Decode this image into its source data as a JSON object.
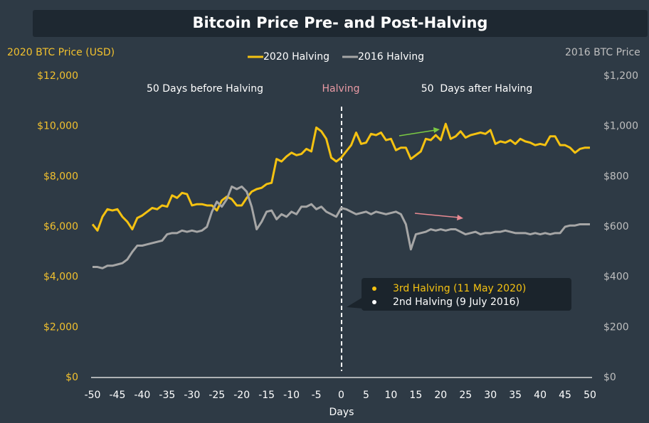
{
  "chart_data": {
    "type": "line",
    "title": "Bitcoin Price Pre- and Post-Halving",
    "ylabel": "2020 BTC Price (USD)",
    "y2label": "2016 BTC Price",
    "xlabel": "Days",
    "annotations": [
      "50 Days before Halving",
      "Halving",
      "50  Days after Halving"
    ],
    "tooltip": [
      "3rd Halving (11 May 2020)",
      "2nd Halving (9 July 2016)"
    ],
    "x": [
      -50,
      -49,
      -48,
      -47,
      -46,
      -45,
      -44,
      -43,
      -42,
      -41,
      -40,
      -39,
      -38,
      -37,
      -36,
      -35,
      -34,
      -33,
      -32,
      -31,
      -30,
      -29,
      -28,
      -27,
      -26,
      -25,
      -24,
      -23,
      -22,
      -21,
      -20,
      -19,
      -18,
      -17,
      -16,
      -15,
      -14,
      -13,
      -12,
      -11,
      -10,
      -9,
      -8,
      -7,
      -6,
      -5,
      -4,
      -3,
      -2,
      -1,
      0,
      1,
      2,
      3,
      4,
      5,
      6,
      7,
      8,
      9,
      10,
      11,
      12,
      13,
      14,
      15,
      16,
      17,
      18,
      19,
      20,
      21,
      22,
      23,
      24,
      25,
      26,
      27,
      28,
      29,
      30,
      31,
      32,
      33,
      34,
      35,
      36,
      37,
      38,
      39,
      40,
      41,
      42,
      43,
      44,
      45,
      46,
      47,
      48,
      49,
      50
    ],
    "series": [
      {
        "name": "2020 Halving",
        "color": "#f5c211",
        "axis": "y",
        "values": [
          6100,
          5850,
          6400,
          6700,
          6650,
          6700,
          6400,
          6200,
          5900,
          6350,
          6450,
          6600,
          6750,
          6700,
          6850,
          6800,
          7250,
          7150,
          7350,
          7300,
          6850,
          6900,
          6900,
          6850,
          6850,
          6650,
          7050,
          7200,
          7100,
          6850,
          6850,
          7150,
          7400,
          7500,
          7550,
          7700,
          7750,
          8700,
          8600,
          8800,
          8950,
          8850,
          8900,
          9100,
          9000,
          9950,
          9800,
          9500,
          8750,
          8600,
          8750,
          9000,
          9250,
          9750,
          9300,
          9350,
          9700,
          9650,
          9750,
          9450,
          9500,
          9050,
          9150,
          9150,
          8700,
          8850,
          9000,
          9500,
          9450,
          9650,
          9450,
          10100,
          9500,
          9600,
          9800,
          9550,
          9650,
          9700,
          9750,
          9700,
          9850,
          9300,
          9400,
          9350,
          9450,
          9300,
          9500,
          9400,
          9350,
          9250,
          9300,
          9250,
          9600,
          9600,
          9250,
          9250,
          9150,
          8950,
          9100,
          9150,
          9150
        ]
      },
      {
        "name": "2016 Halving",
        "color": "#a6a6a6",
        "axis": "y2",
        "values": [
          440,
          440,
          435,
          445,
          445,
          450,
          455,
          470,
          500,
          525,
          525,
          530,
          535,
          540,
          545,
          570,
          575,
          575,
          585,
          580,
          585,
          580,
          585,
          600,
          660,
          700,
          680,
          710,
          760,
          750,
          760,
          740,
          680,
          590,
          620,
          660,
          665,
          630,
          650,
          640,
          660,
          650,
          680,
          680,
          690,
          670,
          680,
          660,
          650,
          640,
          675,
          670,
          660,
          650,
          655,
          660,
          650,
          660,
          655,
          650,
          655,
          660,
          650,
          610,
          510,
          570,
          575,
          580,
          590,
          585,
          590,
          585,
          590,
          590,
          580,
          570,
          575,
          580,
          570,
          575,
          575,
          580,
          580,
          585,
          580,
          575,
          575,
          575,
          570,
          575,
          570,
          575,
          570,
          575,
          575,
          600,
          605,
          605,
          610,
          610,
          610
        ]
      }
    ],
    "xlim": [
      -50,
      50
    ],
    "xticks": [
      -50,
      -45,
      -40,
      -35,
      -30,
      -25,
      -20,
      -15,
      -10,
      -5,
      0,
      5,
      10,
      15,
      20,
      25,
      30,
      35,
      40,
      45,
      50
    ],
    "ylim": [
      0,
      12000
    ],
    "yticks": [
      {
        "value": 0,
        "label": "$0"
      },
      {
        "value": 2000,
        "label": "$2,000"
      },
      {
        "value": 4000,
        "label": "$4,000"
      },
      {
        "value": 6000,
        "label": "$6,000"
      },
      {
        "value": 8000,
        "label": "$8,000"
      },
      {
        "value": 10000,
        "label": "$10,000"
      },
      {
        "value": 12000,
        "label": "$12,000"
      }
    ],
    "y2lim": [
      0,
      1200
    ],
    "y2ticks": [
      {
        "value": 0,
        "label": "$0"
      },
      {
        "value": 200,
        "label": "$200"
      },
      {
        "value": 400,
        "label": "$400"
      },
      {
        "value": 600,
        "label": "$600"
      },
      {
        "value": 800,
        "label": "$800"
      },
      {
        "value": 1000,
        "label": "$1,000"
      },
      {
        "value": 1200,
        "label": "$1,200"
      }
    ],
    "legend": "top"
  }
}
